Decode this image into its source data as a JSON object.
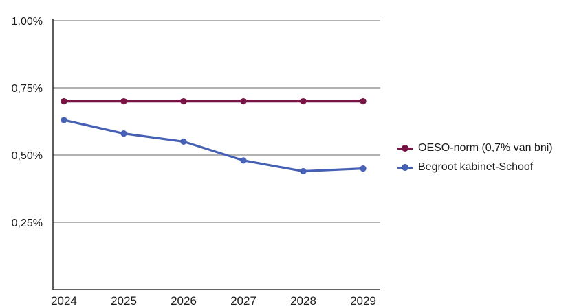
{
  "chart_data": {
    "type": "line",
    "x": [
      "2024",
      "2025",
      "2026",
      "2027",
      "2028",
      "2029"
    ],
    "ylim": [
      0,
      1.0
    ],
    "yticks": [
      {
        "value": 0.25,
        "label": "0,25%"
      },
      {
        "value": 0.5,
        "label": "0,50%"
      },
      {
        "value": 0.75,
        "label": "0,75%"
      },
      {
        "value": 1.0,
        "label": "1,00%"
      }
    ],
    "grid": true,
    "legend_position": "right",
    "series": [
      {
        "name": "OESO-norm (0,7% van bni)",
        "color": "#7a1446",
        "values": [
          0.7,
          0.7,
          0.7,
          0.7,
          0.7,
          0.7
        ]
      },
      {
        "name": "Begroot kabinet-Schoof",
        "color": "#4560b4",
        "values": [
          0.63,
          0.58,
          0.55,
          0.48,
          0.44,
          0.45
        ]
      }
    ]
  }
}
